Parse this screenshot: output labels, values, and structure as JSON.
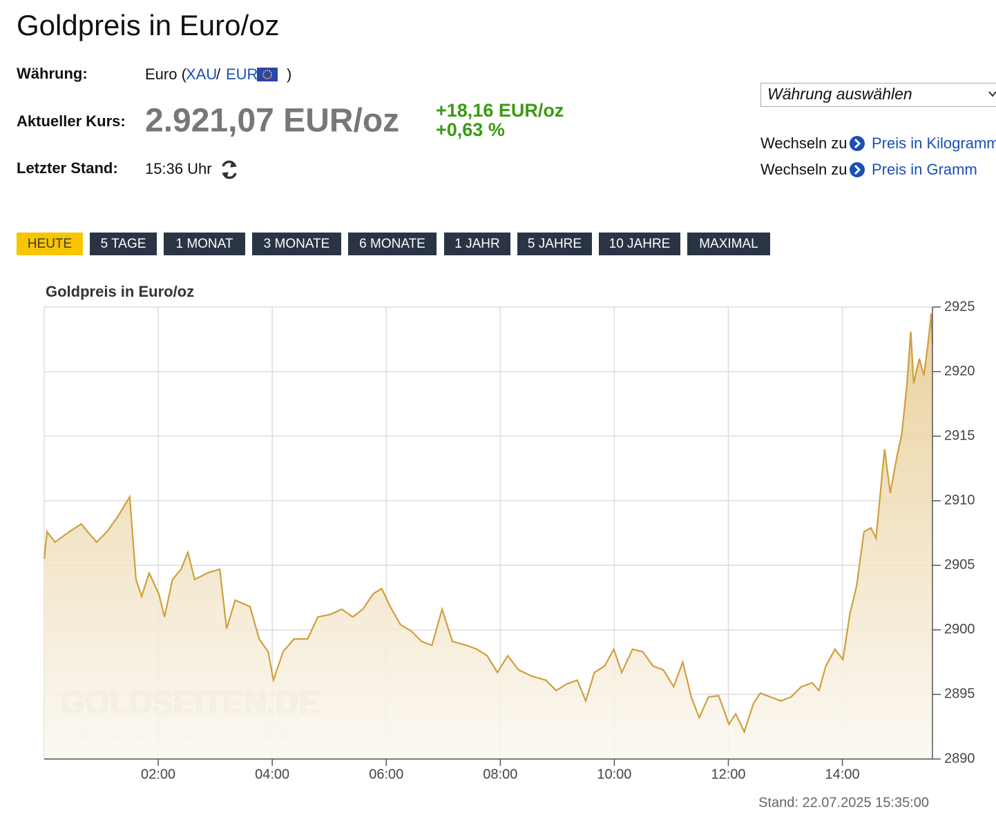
{
  "header": {
    "title": "Goldpreis in Euro/oz"
  },
  "info": {
    "currency_label": "Währung:",
    "currency_text": "Euro (",
    "xau": "XAU",
    "slash": "/",
    "eur": "EUR",
    "close": ")",
    "price_label": "Aktueller Kurs:",
    "price": "2.921,07 EUR/oz",
    "change_abs": "+18,16 EUR/oz",
    "change_pct": "+0,63 %",
    "time_label": "Letzter Stand:",
    "time": "15:36 Uhr"
  },
  "sidebar": {
    "select": "Währung auswählen",
    "links": [
      {
        "prefix": "Wechseln zu",
        "text": "Preis in Kilogramm"
      },
      {
        "prefix": "Wechseln zu",
        "text": "Preis in Gramm"
      }
    ]
  },
  "buttons": [
    "HEUTE",
    "5 TAGE",
    "1 MONAT",
    "3 MONATE",
    "6 MONATE",
    "1 JAHR",
    "5 JAHRE",
    "10 JAHRE",
    "MAXIMAL"
  ],
  "chart_data": {
    "type": "line",
    "title": "Goldpreis in Euro/oz",
    "color": "#cf9f3c",
    "grid": true,
    "x": [
      0,
      0.05,
      0.19,
      0.44,
      0.65,
      0.8,
      0.92,
      1.1,
      1.28,
      1.5,
      1.61,
      1.71,
      1.84,
      2.01,
      2.11,
      2.25,
      2.4,
      2.52,
      2.64,
      2.86,
      3.08,
      3.2,
      3.35,
      3.61,
      3.77,
      3.93,
      4.02,
      4.19,
      4.38,
      4.62,
      4.8,
      5.02,
      5.22,
      5.41,
      5.59,
      5.77,
      5.92,
      6.07,
      6.25,
      6.44,
      6.62,
      6.8,
      6.98,
      7.16,
      7.41,
      7.59,
      7.77,
      7.95,
      8.13,
      8.32,
      8.56,
      8.8,
      8.98,
      9.16,
      9.35,
      9.5,
      9.65,
      9.83,
      9.99,
      10.13,
      10.32,
      10.5,
      10.68,
      10.86,
      11.04,
      11.2,
      11.35,
      11.49,
      11.65,
      11.83,
      12.01,
      12.13,
      12.28,
      12.44,
      12.56,
      12.74,
      12.92,
      13.1,
      13.28,
      13.47,
      13.59,
      13.71,
      13.87,
      14.01,
      14.13,
      14.25,
      14.38,
      14.5,
      14.59,
      14.74,
      14.84,
      14.96,
      15.04,
      15.13,
      15.2,
      15.25,
      15.35,
      15.43,
      15.5,
      15.56,
      15.58
    ],
    "values": [
      2905.5,
      2907.6,
      2906.8,
      2907.6,
      2908.2,
      2907.4,
      2906.8,
      2907.6,
      2908.7,
      2910.3,
      2903.9,
      2902.6,
      2904.4,
      2902.8,
      2901.0,
      2903.9,
      2904.7,
      2906.0,
      2903.9,
      2904.4,
      2904.7,
      2900.1,
      2902.3,
      2901.8,
      2899.3,
      2898.3,
      2896.1,
      2898.3,
      2899.3,
      2899.3,
      2901.0,
      2901.2,
      2901.6,
      2901.0,
      2901.6,
      2902.8,
      2903.2,
      2901.8,
      2900.4,
      2899.9,
      2899.1,
      2898.8,
      2901.6,
      2899.1,
      2898.8,
      2898.5,
      2898.0,
      2896.7,
      2898.0,
      2896.9,
      2896.4,
      2896.1,
      2895.3,
      2895.8,
      2896.1,
      2894.5,
      2896.7,
      2897.2,
      2898.5,
      2896.7,
      2898.5,
      2898.3,
      2897.2,
      2896.9,
      2895.6,
      2897.5,
      2894.8,
      2893.2,
      2894.8,
      2894.9,
      2892.7,
      2893.5,
      2892.1,
      2894.3,
      2895.1,
      2894.8,
      2894.5,
      2894.8,
      2895.6,
      2895.9,
      2895.3,
      2897.2,
      2898.5,
      2897.7,
      2901.2,
      2903.4,
      2907.6,
      2907.9,
      2907.1,
      2914.0,
      2910.6,
      2913.5,
      2915.1,
      2918.9,
      2923.1,
      2919.1,
      2921.0,
      2919.7,
      2922.1,
      2924.5,
      2922.1
    ],
    "xlim": [
      0,
      15.58
    ],
    "ylim": [
      2890,
      2925
    ],
    "xticks": [
      {
        "value": 2,
        "label": "02:00"
      },
      {
        "value": 4,
        "label": "04:00"
      },
      {
        "value": 6,
        "label": "06:00"
      },
      {
        "value": 8,
        "label": "08:00"
      },
      {
        "value": 10,
        "label": "10:00"
      },
      {
        "value": 12,
        "label": "12:00"
      },
      {
        "value": 14,
        "label": "14:00"
      }
    ],
    "yticks": [
      2890,
      2895,
      2900,
      2905,
      2910,
      2915,
      2920,
      2925
    ],
    "watermark": "GOLDSEITEN.DE",
    "watermark_sub": "DIE GOLDSEITEN",
    "footer": "Stand: 22.07.2025 15:35:00"
  }
}
